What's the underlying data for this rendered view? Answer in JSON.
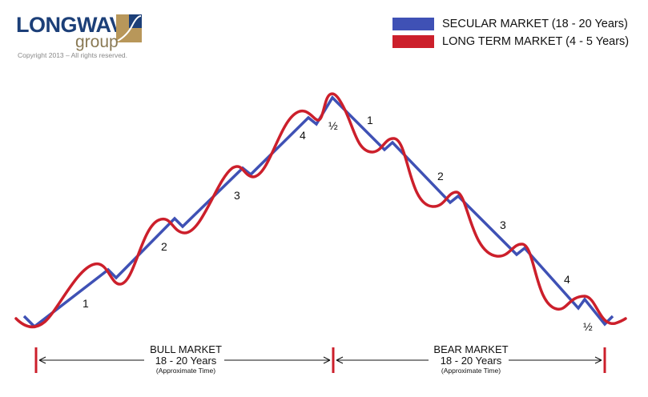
{
  "logo": {
    "name": "LONGWAVE",
    "sub": "group",
    "copyright": "Copyright 2013 – All rights reserved."
  },
  "legend": [
    {
      "label": "SECULAR MARKET (18  - 20 Years)",
      "color": "#3f51b5"
    },
    {
      "label": "LONG TERM MARKET (4 - 5 Years)",
      "color": "#cc1f2b"
    }
  ],
  "wave_labels": {
    "bull": [
      "1",
      "2",
      "3",
      "4"
    ],
    "top": "½",
    "bear": [
      "1",
      "2",
      "3",
      "4"
    ],
    "bottom": "½"
  },
  "phases": [
    {
      "title": "BULL MARKET",
      "duration": "18 - 20 Years",
      "note": "(Approximate Time)"
    },
    {
      "title": "BEAR MARKET",
      "duration": "18 - 20 Years",
      "note": "(Approximate Time)"
    }
  ],
  "colors": {
    "secular": "#3f51b5",
    "long_term": "#cc1f2b",
    "timeline_tick": "#cc1f2b",
    "logo_blue": "#1c3f78",
    "logo_gold": "#b8975a"
  }
}
